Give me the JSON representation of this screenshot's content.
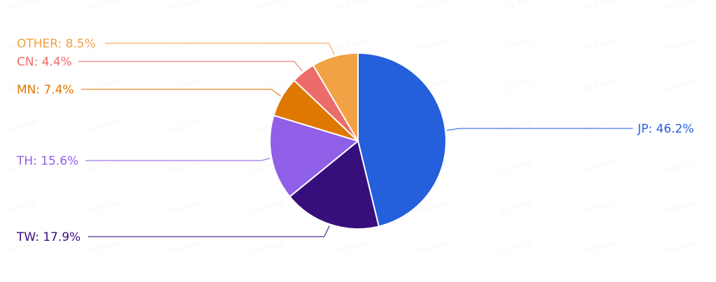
{
  "chart_data": {
    "type": "pie",
    "start_angle": "top",
    "direction": "clockwise",
    "slices": [
      {
        "label": "JP",
        "value": 46.2,
        "text": "JP: 46.2%",
        "color": "#245fdc"
      },
      {
        "label": "TW",
        "value": 17.9,
        "text": "TW: 17.9%",
        "color": "#370f7c"
      },
      {
        "label": "TH",
        "value": 15.6,
        "text": "TH: 15.6%",
        "color": "#8f5fe8"
      },
      {
        "label": "MN",
        "value": 7.4,
        "text": "MN: 7.4%",
        "color": "#df7800"
      },
      {
        "label": "CN",
        "value": 4.4,
        "text": "CN: 4.4%",
        "color": "#ec6c6a"
      },
      {
        "label": "OTHER",
        "value": 8.5,
        "text": "OTHER: 8.5%",
        "color": "#f2a244"
      }
    ]
  },
  "watermark": "IYU_JP 8930"
}
